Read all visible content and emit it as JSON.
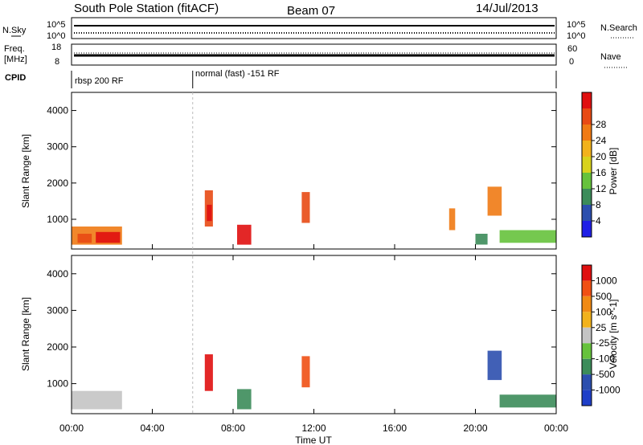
{
  "header": {
    "station": "South Pole Station (fitACF)",
    "beam": "Beam 07",
    "date": "14/Jul/2013"
  },
  "status_panels": {
    "nsky_label": "N.Sky",
    "nsky_ticks": [
      "10^5",
      "10^0"
    ],
    "nsearch_label": "N.Search",
    "nsearch_ticks": [
      "10^5",
      "10^0"
    ],
    "freq_label_1": "Freq.",
    "freq_label_2": "[MHz]",
    "freq_ticks": [
      "18",
      "8"
    ],
    "nave_label": "Nave",
    "nave_ticks": [
      "60",
      "0"
    ],
    "cpid_label": "CPID",
    "cpid_1": "rbsp 200 RF",
    "cpid_2": "normal (fast) -151 RF",
    "cpid_switch_hour": 6.0
  },
  "colors": {
    "power": [
      "#1f1fe6",
      "#2c4fae",
      "#3c8c5a",
      "#66c23c",
      "#d8d21c",
      "#f2b21c",
      "#f07a14",
      "#e84a14",
      "#e01010"
    ],
    "velocity": [
      "#e01010",
      "#f05014",
      "#f08a14",
      "#f2b21c",
      "#c4c4c4",
      "#66c23c",
      "#3c8c5a",
      "#2c4fae",
      "#1f3fc8"
    ]
  },
  "chart_data": [
    {
      "type": "heatmap",
      "panel": "power",
      "ylabel": "Slant Range [km]",
      "xlabel": "Time UT",
      "xlim_hours": [
        0,
        24
      ],
      "x_ticks": [
        "00:00",
        "04:00",
        "08:00",
        "12:00",
        "16:00",
        "20:00",
        "00:00"
      ],
      "ylim": [
        180,
        4500
      ],
      "y_ticks": [
        1000,
        2000,
        3000,
        4000
      ],
      "colorbar_label": "Power [dB]",
      "colorbar_ticks": [
        "4",
        "8",
        "12",
        "16",
        "20",
        "24",
        "28"
      ],
      "colorbar_range": [
        0,
        32
      ],
      "regions": [
        {
          "t0": 0.0,
          "t1": 2.5,
          "r0": 300,
          "r1": 800,
          "level": 6
        },
        {
          "t0": 1.2,
          "t1": 2.4,
          "r0": 350,
          "r1": 650,
          "level": 8
        },
        {
          "t0": 0.3,
          "t1": 1.0,
          "r0": 350,
          "r1": 600,
          "level": 7
        },
        {
          "t0": 6.6,
          "t1": 7.0,
          "r0": 800,
          "r1": 1800,
          "level": 7
        },
        {
          "t0": 6.7,
          "t1": 6.95,
          "r0": 950,
          "r1": 1400,
          "level": 8
        },
        {
          "t0": 8.2,
          "t1": 8.9,
          "r0": 300,
          "r1": 850,
          "level": 8
        },
        {
          "t0": 11.4,
          "t1": 11.8,
          "r0": 900,
          "r1": 1750,
          "level": 7
        },
        {
          "t0": 18.7,
          "t1": 19.0,
          "r0": 700,
          "r1": 1300,
          "level": 6
        },
        {
          "t0": 20.6,
          "t1": 21.3,
          "r0": 1100,
          "r1": 1900,
          "level": 6
        },
        {
          "t0": 20.0,
          "t1": 20.6,
          "r0": 300,
          "r1": 600,
          "level": 2
        },
        {
          "t0": 21.2,
          "t1": 24.0,
          "r0": 350,
          "r1": 700,
          "level": 3
        }
      ]
    },
    {
      "type": "heatmap",
      "panel": "velocity",
      "ylabel": "Slant Range [km]",
      "xlabel": "Time UT",
      "xlim_hours": [
        0,
        24
      ],
      "x_ticks": [
        "00:00",
        "04:00",
        "08:00",
        "12:00",
        "16:00",
        "20:00",
        "00:00"
      ],
      "ylim": [
        180,
        4500
      ],
      "y_ticks": [
        1000,
        2000,
        3000,
        4000
      ],
      "colorbar_label": "Velocity [m s^-1]",
      "colorbar_ticks": [
        "1000",
        "500",
        "100",
        "25",
        "-25",
        "-100",
        "-500",
        "-1000"
      ],
      "regions": [
        {
          "t0": 0.0,
          "t1": 2.5,
          "r0": 300,
          "r1": 800,
          "level": 4
        },
        {
          "t0": 6.6,
          "t1": 7.0,
          "r0": 800,
          "r1": 1800,
          "level": 0
        },
        {
          "t0": 8.2,
          "t1": 8.9,
          "r0": 300,
          "r1": 850,
          "level": 6
        },
        {
          "t0": 11.4,
          "t1": 11.8,
          "r0": 900,
          "r1": 1750,
          "level": 1
        },
        {
          "t0": 20.6,
          "t1": 21.3,
          "r0": 1100,
          "r1": 1900,
          "level": 7
        },
        {
          "t0": 21.2,
          "t1": 24.0,
          "r0": 350,
          "r1": 700,
          "level": 6
        }
      ]
    }
  ]
}
